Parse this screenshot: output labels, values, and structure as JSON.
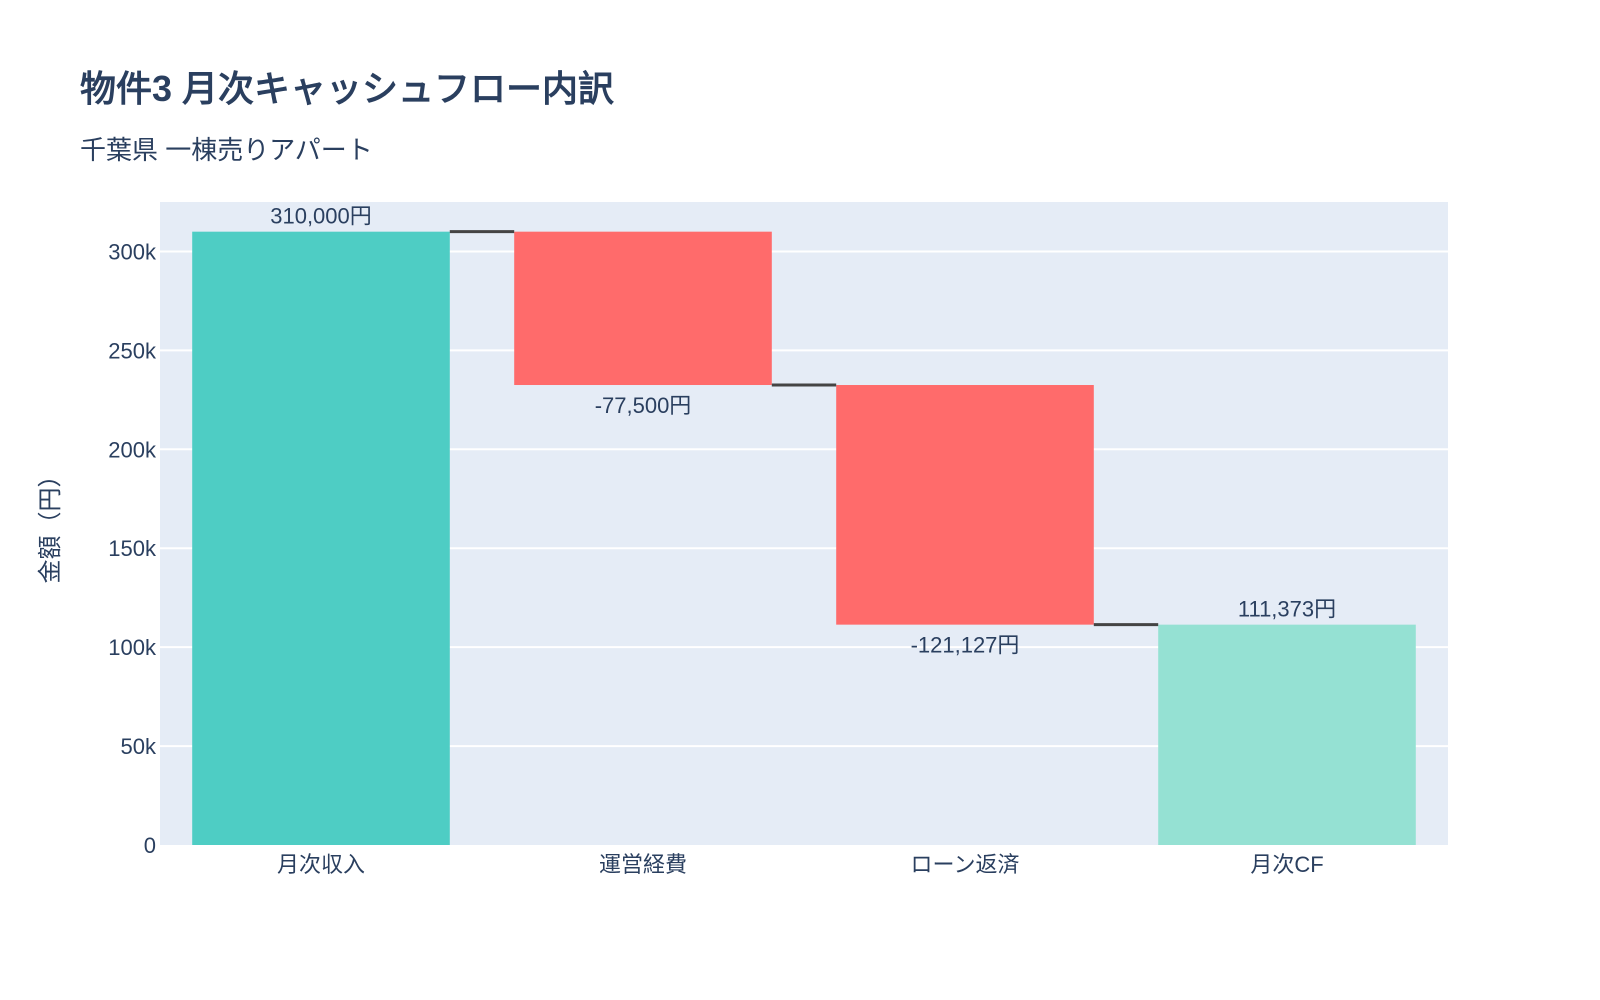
{
  "title": "物件3 月次キャッシュフロー内訳",
  "subtitle": "千葉県 一棟売りアパート",
  "chart_data": {
    "type": "waterfall",
    "categories": [
      "月次収入",
      "運営経費",
      "ローン返済",
      "月次CF"
    ],
    "measures": [
      "relative",
      "relative",
      "relative",
      "total"
    ],
    "values": [
      310000,
      -77500,
      -121127,
      111373
    ],
    "data_labels": [
      "310,000円",
      "-77,500円",
      "-121,127円",
      "111,373円"
    ],
    "ylabel": "金額（円）",
    "xlabel": "",
    "ylim": [
      0,
      325000
    ],
    "yticks": [
      0,
      50000,
      100000,
      150000,
      200000,
      250000,
      300000
    ],
    "ytick_labels": [
      "0",
      "50k",
      "100k",
      "150k",
      "200k",
      "250k",
      "300k"
    ],
    "grid": true,
    "colors": {
      "increasing": "#4ECDC4",
      "decreasing": "#FF6B6B",
      "total": "#95E1D3",
      "connector": "#444444",
      "plot_bg": "#E5ECF6"
    }
  }
}
